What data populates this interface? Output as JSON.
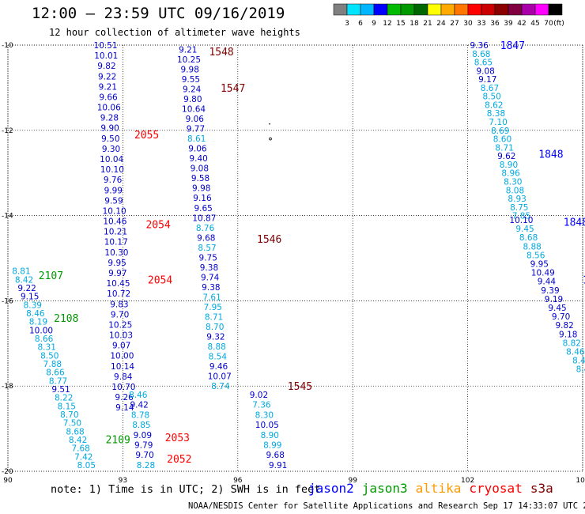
{
  "title": "12:00 – 23:59 UTC 09/16/2019",
  "subtitle": "12 hour collection of altimeter wave heights",
  "note": "note: 1) Time is in UTC; 2) SWH is in feet",
  "legend": [
    {
      "name": "jason2",
      "color": "#0000ff"
    },
    {
      "name": "jason3",
      "color": "#009900"
    },
    {
      "name": "altika",
      "color": "#ff9900"
    },
    {
      "name": "cryosat",
      "color": "#ff0000"
    },
    {
      "name": "s3a",
      "color": "#800000"
    }
  ],
  "footer": "NOAA/NESDIS Center for Satellite Applications and Research   Sep 17 14:33:07 UTC 2019",
  "colorbar": {
    "unit": "(ft)",
    "labels": [
      "3",
      "6",
      "9",
      "12",
      "15",
      "18",
      "21",
      "24",
      "27",
      "30",
      "33",
      "36",
      "39",
      "42",
      "45",
      "70"
    ],
    "colors": [
      "#808080",
      "#00e5ff",
      "#00b7ff",
      "#0000ff",
      "#00bb00",
      "#009900",
      "#006600",
      "#ffff00",
      "#ffaa00",
      "#ff7700",
      "#ff0000",
      "#cc0000",
      "#8b0000",
      "#800040",
      "#aa00aa",
      "#ff00ff",
      "#000000"
    ]
  },
  "chart_data": {
    "type": "scatter",
    "xlabel": "",
    "ylabel": "",
    "xlim": [
      90,
      105
    ],
    "ylim": [
      -20,
      -10
    ],
    "xticks": [
      "90",
      "93",
      "96",
      "99",
      "102",
      "105"
    ],
    "yticks": [
      "-10",
      "-12",
      "-14",
      "-16",
      "-18",
      "-20"
    ],
    "grid": true,
    "tracks": [
      {
        "satellite": "jason2",
        "lon_start": 92.55,
        "lat_start": -10.0,
        "lon_end": 93.05,
        "lat_end": -18.5,
        "values": [
          "10.51",
          "10.01",
          "9.82",
          "9.22",
          "9.21",
          "9.66",
          "10.06",
          "9.28",
          "9.90",
          "9.50",
          "9.30",
          "10.04",
          "10.10",
          "9.76",
          "9.99",
          "9.59",
          "10.10",
          "10.46",
          "10.21",
          "10.17",
          "10.30",
          "9.95",
          "9.97",
          "10.45",
          "10.72",
          "9.83",
          "9.70",
          "10.25",
          "10.03",
          "9.07",
          "10.00",
          "10.14",
          "9.84",
          "10.70",
          "9.26",
          "9.14"
        ],
        "colors": [
          "b",
          "b",
          "b",
          "b",
          "b",
          "b",
          "b",
          "b",
          "b",
          "b",
          "b",
          "b",
          "b",
          "b",
          "b",
          "b",
          "b",
          "b",
          "b",
          "b",
          "b",
          "b",
          "b",
          "b",
          "b",
          "b",
          "b",
          "b",
          "b",
          "b",
          "b",
          "b",
          "b",
          "b",
          "b",
          "b"
        ]
      },
      {
        "satellite": "jason2",
        "lon_start": 93.4,
        "lat_start": -18.2,
        "lon_end": 93.6,
        "lat_end": -19.85,
        "values": [
          "8.46",
          "9.42",
          "8.78",
          "8.85",
          "9.09",
          "9.79",
          "9.70",
          "8.28"
        ],
        "colors": [
          "c",
          "b",
          "c",
          "c",
          "b",
          "b",
          "b",
          "c"
        ]
      },
      {
        "satellite": "jason2",
        "lon_start": 94.7,
        "lat_start": -10.1,
        "lon_end": 95.55,
        "lat_end": -18.0,
        "values": [
          "9.21",
          "10.25",
          "9.98",
          "9.55",
          "9.24",
          "9.80",
          "10.64",
          "9.06",
          "9.77",
          "8.61",
          "9.06",
          "9.40",
          "9.08",
          "9.58",
          "9.98",
          "9.16",
          "9.65",
          "10.87",
          "8.76",
          "9.68",
          "8.57",
          "9.75",
          "9.38",
          "9.74",
          "9.38",
          "7.61",
          "7.95",
          "8.71",
          "8.70",
          "9.32",
          "8.88",
          "8.54",
          "9.46",
          "10.07",
          "8.74"
        ],
        "colors": [
          "b",
          "b",
          "b",
          "b",
          "b",
          "b",
          "b",
          "b",
          "b",
          "c",
          "b",
          "b",
          "b",
          "b",
          "b",
          "b",
          "b",
          "b",
          "c",
          "b",
          "c",
          "b",
          "b",
          "b",
          "b",
          "c",
          "c",
          "c",
          "c",
          "b",
          "c",
          "c",
          "b",
          "b",
          "c"
        ]
      },
      {
        "satellite": "jason2",
        "lon_start": 96.55,
        "lat_start": -18.2,
        "lon_end": 97.05,
        "lat_end": -19.85,
        "values": [
          "9.02",
          "7.36",
          "8.30",
          "10.05",
          "8.90",
          "8.99",
          "9.68",
          "9.91"
        ],
        "colors": [
          "b",
          "c",
          "c",
          "b",
          "c",
          "c",
          "b",
          "b"
        ]
      },
      {
        "satellite": "jason2",
        "lon_start": 100.3,
        "lat_start": -9.97,
        "lon_end": 100.85,
        "lat_end": -10.6,
        "values": [
          "9.36",
          "8.68",
          "8.65",
          "9.08",
          "9.17",
          "8.67",
          "8.50",
          "8.62",
          "8.38",
          "7.10",
          "8.69",
          "8.60",
          "8.71",
          "9.62",
          "8.90",
          "8.96",
          "8.30",
          "8.08",
          "8.93",
          "8.75",
          "7.85"
        ],
        "colors": [
          "b",
          "c",
          "c",
          "b",
          "b",
          "c",
          "c",
          "c",
          "c",
          "c",
          "c",
          "c",
          "c",
          "b",
          "c",
          "c",
          "c",
          "c",
          "c",
          "c",
          "c"
        ]
      },
      {
        "satellite": "jason2",
        "lon_start": 102.3,
        "lat_start": -10.0,
        "lon_end": 103.4,
        "lat_end": -14.0,
        "values": [
          "9.36",
          "8.68",
          "8.65",
          "9.08",
          "9.17",
          "8.67",
          "8.50",
          "8.62",
          "8.38",
          "7.10",
          "8.69",
          "8.60",
          "8.71",
          "9.62",
          "8.90",
          "8.96",
          "8.30",
          "8.08",
          "8.93",
          "8.75",
          "7.85"
        ],
        "colors": [
          "b",
          "c",
          "c",
          "b",
          "b",
          "c",
          "c",
          "c",
          "c",
          "c",
          "c",
          "c",
          "c",
          "b",
          "c",
          "c",
          "c",
          "c",
          "c",
          "c",
          "c"
        ]
      },
      {
        "satellite": "jason2",
        "lon_start": 103.4,
        "lat_start": -14.1,
        "lon_end": 105.0,
        "lat_end": -17.6,
        "values": [
          "10.10",
          "9.45",
          "8.68",
          "8.88",
          "8.56",
          "9.95",
          "10.49",
          "9.44",
          "9.39",
          "9.19",
          "9.45",
          "9.70",
          "9.82",
          "9.18",
          "8.82",
          "8.46",
          "8.4",
          "8.4"
        ],
        "colors": [
          "b",
          "c",
          "c",
          "c",
          "c",
          "b",
          "b",
          "b",
          "b",
          "b",
          "b",
          "b",
          "b",
          "b",
          "c",
          "c",
          "c",
          "c"
        ]
      },
      {
        "satellite": "jason3",
        "lon_start": 90.35,
        "lat_start": -15.3,
        "lon_end": 92.05,
        "lat_end": -19.85,
        "values": [
          "8.81",
          "8.42",
          "9.22",
          "9.15",
          "8.39",
          "8.46",
          "8.19",
          "10.00",
          "8.66",
          "8.31",
          "8.50",
          "7.88",
          "8.66",
          "8.77",
          "9.51",
          "8.22",
          "8.15",
          "8.70",
          "7.50",
          "8.68",
          "8.42",
          "7.68",
          "7.42",
          "8.05"
        ],
        "colors": [
          "c",
          "c",
          "b",
          "b",
          "c",
          "c",
          "c",
          "b",
          "c",
          "c",
          "c",
          "c",
          "c",
          "c",
          "b",
          "c",
          "c",
          "c",
          "c",
          "c",
          "c",
          "c",
          "c",
          "c"
        ]
      }
    ],
    "time_labels": [
      {
        "text": "1548",
        "sat": "s3a",
        "lon": 95.25,
        "lat": -10.15
      },
      {
        "text": "1547",
        "sat": "s3a",
        "lon": 95.55,
        "lat": -11.0
      },
      {
        "text": "1546",
        "sat": "s3a",
        "lon": 96.5,
        "lat": -14.55
      },
      {
        "text": "1545",
        "sat": "s3a",
        "lon": 97.3,
        "lat": -18.0
      },
      {
        "text": "2055",
        "sat": "cryosat",
        "lon": 93.3,
        "lat": -12.1
      },
      {
        "text": "2054",
        "sat": "cryosat",
        "lon": 93.6,
        "lat": -14.2
      },
      {
        "text": "2054",
        "sat": "cryosat",
        "lon": 93.65,
        "lat": -15.5
      },
      {
        "text": "2053",
        "sat": "cryosat",
        "lon": 94.1,
        "lat": -19.2
      },
      {
        "text": "2052",
        "sat": "cryosat",
        "lon": 94.15,
        "lat": -19.7
      },
      {
        "text": "2107",
        "sat": "jason3",
        "lon": 90.8,
        "lat": -15.4
      },
      {
        "text": "2108",
        "sat": "jason3",
        "lon": 91.2,
        "lat": -16.4
      },
      {
        "text": "2109",
        "sat": "jason3",
        "lon": 92.55,
        "lat": -19.25
      },
      {
        "text": "1847",
        "sat": "jason2",
        "lon": 102.85,
        "lat": -10.0
      },
      {
        "text": "1848",
        "sat": "jason2",
        "lon": 103.85,
        "lat": -12.55
      },
      {
        "text": "1848",
        "sat": "jason2",
        "lon": 104.5,
        "lat": -14.15
      },
      {
        "text": "18",
        "sat": "jason2",
        "lon": 105.0,
        "lat": -15.5
      }
    ]
  }
}
